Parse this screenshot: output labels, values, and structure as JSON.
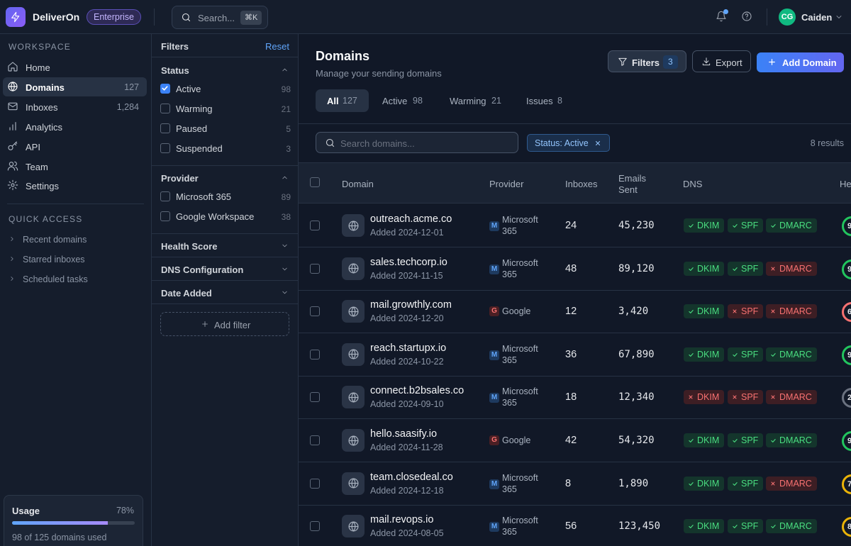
{
  "app": {
    "name": "DeliverOn",
    "plan": "Enterprise",
    "search_placeholder": "Search...",
    "search_shortcut": "⌘K",
    "user_initials": "CG",
    "user_name": "Caiden",
    "avatar_color": "#10b981",
    "accent": "#3b82f6"
  },
  "sidebar": {
    "workspace_title": "WORKSPACE",
    "items": [
      {
        "label": "Home",
        "count": "",
        "icon": "home-icon"
      },
      {
        "label": "Domains",
        "count": "127",
        "icon": "globe-icon",
        "active": true
      },
      {
        "label": "Inboxes",
        "count": "1,284",
        "icon": "mail-icon"
      },
      {
        "label": "Analytics",
        "count": "",
        "icon": "bar-chart-icon"
      },
      {
        "label": "API",
        "count": "",
        "icon": "key-icon"
      },
      {
        "label": "Team",
        "count": "",
        "icon": "users-icon"
      },
      {
        "label": "Settings",
        "count": "",
        "icon": "gear-icon"
      }
    ],
    "quick_access_title": "QUICK ACCESS",
    "quick_access": [
      {
        "label": "Recent domains"
      },
      {
        "label": "Starred inboxes"
      },
      {
        "label": "Scheduled tasks"
      }
    ],
    "usage": {
      "title": "Usage",
      "percent_label": "78%",
      "fraction": 0.78,
      "subtitle": "98 of 125 domains used"
    }
  },
  "filters": {
    "title": "Filters",
    "reset_label": "Reset",
    "status": {
      "label": "Status",
      "options": [
        {
          "label": "Active",
          "count": "98",
          "checked": true
        },
        {
          "label": "Warming",
          "count": "21",
          "checked": false
        },
        {
          "label": "Paused",
          "count": "5",
          "checked": false
        },
        {
          "label": "Suspended",
          "count": "3",
          "checked": false
        }
      ]
    },
    "provider": {
      "label": "Provider",
      "options": [
        {
          "label": "Microsoft 365",
          "count": "89",
          "checked": false
        },
        {
          "label": "Google Workspace",
          "count": "38",
          "checked": false
        }
      ]
    },
    "collapsed_groups": [
      "Health Score",
      "DNS Configuration",
      "Date Added"
    ],
    "add_filter_label": "Add filter"
  },
  "main": {
    "title": "Domains",
    "subtitle": "Manage your sending domains",
    "filters_button": "Filters",
    "filters_count": "3",
    "export_button": "Export",
    "add_button": "Add Domain",
    "tabs": [
      {
        "label": "All",
        "count": "127",
        "active": true
      },
      {
        "label": "Active",
        "count": "98"
      },
      {
        "label": "Warming",
        "count": "21"
      },
      {
        "label": "Issues",
        "count": "8"
      }
    ],
    "search_placeholder": "Search domains...",
    "active_chip": "Status: Active",
    "results": "8 results",
    "columns": {
      "domain": "Domain",
      "provider": "Provider",
      "inboxes": "Inboxes",
      "emails_line1": "Emails",
      "emails_line2": "Sent",
      "dns": "DNS",
      "health": "He"
    },
    "rows": [
      {
        "domain": "outreach.acme.co",
        "added": "Added 2024-12-01",
        "provider_badge": "M",
        "provider_kind": "ms",
        "provider_line1": "Microsoft",
        "provider_line2": "365",
        "inboxes": "24",
        "emails": "45,230",
        "dkim": true,
        "spf": true,
        "dmarc": true,
        "health": "9",
        "health_color": "#22c55e"
      },
      {
        "domain": "sales.techcorp.io",
        "added": "Added 2024-11-15",
        "provider_badge": "M",
        "provider_kind": "ms",
        "provider_line1": "Microsoft",
        "provider_line2": "365",
        "inboxes": "48",
        "emails": "89,120",
        "dkim": true,
        "spf": true,
        "dmarc": false,
        "health": "9",
        "health_color": "#22c55e"
      },
      {
        "domain": "mail.growthly.com",
        "added": "Added 2024-12-20",
        "provider_badge": "G",
        "provider_kind": "g",
        "provider_line1": "Google",
        "provider_line2": "",
        "inboxes": "12",
        "emails": "3,420",
        "dkim": true,
        "spf": false,
        "dmarc": false,
        "health": "6",
        "health_color": "#f87171"
      },
      {
        "domain": "reach.startupx.io",
        "added": "Added 2024-10-22",
        "provider_badge": "M",
        "provider_kind": "ms",
        "provider_line1": "Microsoft",
        "provider_line2": "365",
        "inboxes": "36",
        "emails": "67,890",
        "dkim": true,
        "spf": true,
        "dmarc": true,
        "health": "9",
        "health_color": "#22c55e"
      },
      {
        "domain": "connect.b2bsales.co",
        "added": "Added 2024-09-10",
        "provider_badge": "M",
        "provider_kind": "ms",
        "provider_line1": "Microsoft",
        "provider_line2": "365",
        "inboxes": "18",
        "emails": "12,340",
        "dkim": false,
        "spf": false,
        "dmarc": false,
        "health": "2",
        "health_color": "#6b7280"
      },
      {
        "domain": "hello.saasify.io",
        "added": "Added 2024-11-28",
        "provider_badge": "G",
        "provider_kind": "g",
        "provider_line1": "Google",
        "provider_line2": "",
        "inboxes": "42",
        "emails": "54,320",
        "dkim": true,
        "spf": true,
        "dmarc": true,
        "health": "9",
        "health_color": "#22c55e"
      },
      {
        "domain": "team.closedeal.co",
        "added": "Added 2024-12-18",
        "provider_badge": "M",
        "provider_kind": "ms",
        "provider_line1": "Microsoft",
        "provider_line2": "365",
        "inboxes": "8",
        "emails": "1,890",
        "dkim": true,
        "spf": true,
        "dmarc": false,
        "health": "7",
        "health_color": "#eab308"
      },
      {
        "domain": "mail.revops.io",
        "added": "Added 2024-08-05",
        "provider_badge": "M",
        "provider_kind": "ms",
        "provider_line1": "Microsoft",
        "provider_line2": "365",
        "inboxes": "56",
        "emails": "123,450",
        "dkim": true,
        "spf": true,
        "dmarc": true,
        "health": "8",
        "health_color": "#eab308"
      }
    ]
  }
}
